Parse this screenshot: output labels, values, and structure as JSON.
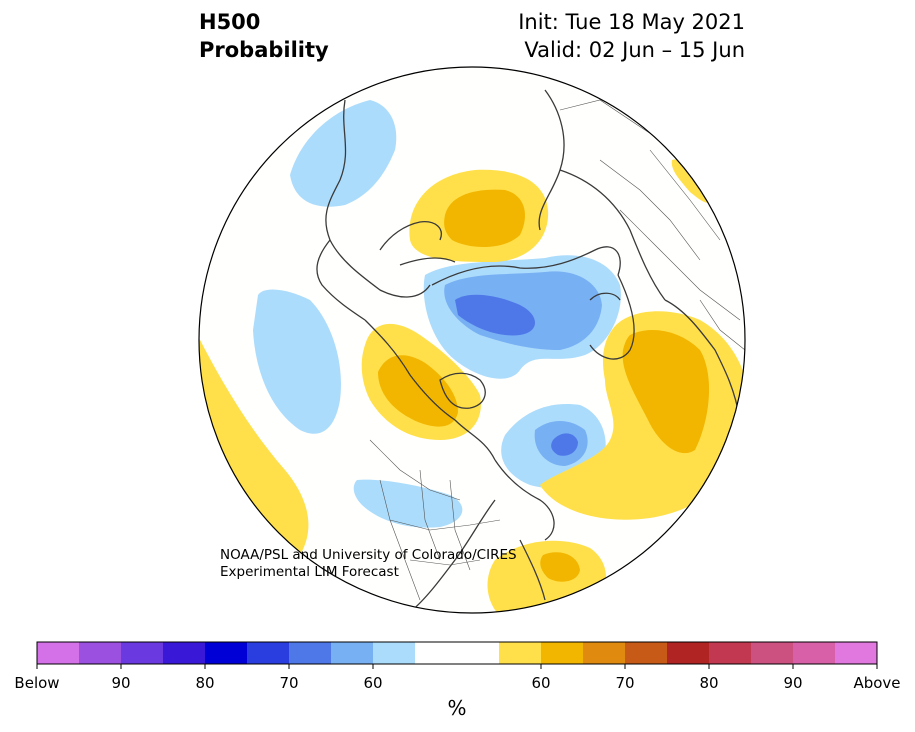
{
  "title": {
    "line1": "H500",
    "line2": "Probability",
    "init": "Init: Tue 18 May 2021",
    "valid": "Valid: 02 Jun – 15 Jun"
  },
  "credit": {
    "line1": "NOAA/PSL and University of Colorado/CIRES",
    "line2": "Experimental LIM Forecast"
  },
  "colors": {
    "below": [
      "#d470e8",
      "#9c50e0",
      "#6a3ae0",
      "#3a18d8",
      "#0000d6",
      "#2a3ee0",
      "#4e78e8",
      "#78b0f4",
      "#acdcfc"
    ],
    "neutral": "#ffffff",
    "above": [
      "#ffe04a",
      "#f2b600",
      "#e08a10",
      "#c85a18",
      "#b02424",
      "#c23850",
      "#cc5080",
      "#d860a8",
      "#e078e0"
    ],
    "land": "#3a3a3a",
    "ocean_bg": "#fffffd"
  },
  "colorbar": {
    "labels": [
      "Below",
      "90",
      "80",
      "70",
      "60",
      "60",
      "70",
      "80",
      "90",
      "Above"
    ],
    "unit": "%"
  }
}
